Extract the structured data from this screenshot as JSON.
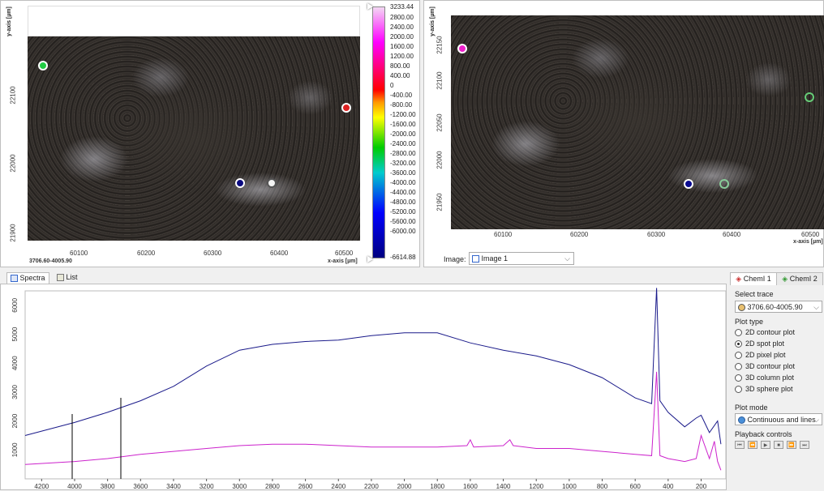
{
  "left_image": {
    "y_axis_label": "y-axis [µm]",
    "x_axis_label": "x-axis [µm]",
    "y_ticks": [
      "22100",
      "22000",
      "21900"
    ],
    "x_ticks": [
      "60100",
      "60200",
      "60300",
      "60400",
      "60500"
    ],
    "corner_label": "3706.60-4005.90",
    "colorbar_labels": [
      "3233.44",
      "2800.00",
      "2400.00",
      "2000.00",
      "1600.00",
      "1200.00",
      "800.00",
      "400.00",
      "0",
      "-400.00",
      "-800.00",
      "-1200.00",
      "-1600.00",
      "-2000.00",
      "-2400.00",
      "-2800.00",
      "-3200.00",
      "-3600.00",
      "-4000.00",
      "-4400.00",
      "-4800.00",
      "-5200.00",
      "-5600.00",
      "-6000.00",
      "-6614.88"
    ]
  },
  "right_image": {
    "y_axis_label": "y-axis [µm]",
    "x_axis_label": "x-axis [µm]",
    "y_ticks": [
      "22150",
      "22100",
      "22050",
      "22000",
      "21950"
    ],
    "x_ticks": [
      "60100",
      "60200",
      "60300",
      "60400",
      "60500"
    ],
    "image_select_label": "Image:",
    "image_select_value": "Image 1"
  },
  "tabs": {
    "spectra": "Spectra",
    "list": "List"
  },
  "spectra": {
    "x_ticks": [
      "4200",
      "4000",
      "3800",
      "3600",
      "3400",
      "3200",
      "3000",
      "2800",
      "2600",
      "2400",
      "2200",
      "2000",
      "1800",
      "1600",
      "1400",
      "1200",
      "1000",
      "800",
      "600",
      "400",
      "200"
    ],
    "y_ticks": [
      "6000",
      "5000",
      "4000",
      "3000",
      "2000",
      "1000"
    ]
  },
  "chemi_tabs": [
    "ChemI 1",
    "ChemI 2"
  ],
  "side": {
    "select_trace_label": "Select trace",
    "select_trace_value": "3706.60-4005.90",
    "plot_type_label": "Plot type",
    "plot_types": [
      "2D contour plot",
      "2D spot plot",
      "2D pixel plot",
      "3D contour plot",
      "3D column plot",
      "3D sphere plot"
    ],
    "plot_type_selected": 1,
    "plot_mode_label": "Plot mode",
    "plot_mode_value": "Continuous and lines",
    "playback_label": "Playback controls"
  },
  "colors": {
    "blue_trace": "#1a1a8a",
    "magenta_trace": "#cc22cc"
  },
  "chart_data": {
    "type": "line",
    "xlim": [
      4300,
      50
    ],
    "ylim": [
      0,
      6500
    ],
    "series": [
      {
        "x": [
          4300,
          4000,
          3800,
          3600,
          3400,
          3200,
          3000,
          2800,
          2600,
          2400,
          2200,
          2000,
          1800,
          1600,
          1400,
          1200,
          1000,
          800,
          600,
          500,
          470,
          450,
          400,
          300,
          230,
          200,
          150,
          100,
          80
        ],
        "y": [
          1500,
          1950,
          2300,
          2700,
          3200,
          3900,
          4450,
          4650,
          4750,
          4800,
          4950,
          5050,
          5050,
          4700,
          4450,
          4250,
          3950,
          3500,
          2800,
          2600,
          6600,
          2700,
          2300,
          1800,
          2100,
          2200,
          1600,
          2000,
          1200
        ]
      },
      {
        "x": [
          4300,
          4000,
          3800,
          3600,
          3400,
          3200,
          3000,
          2800,
          2600,
          2400,
          2200,
          2000,
          1800,
          1620,
          1600,
          1580,
          1400,
          1360,
          1340,
          1200,
          1000,
          800,
          600,
          500,
          470,
          450,
          400,
          300,
          230,
          200,
          150,
          120,
          100,
          80
        ],
        "y": [
          500,
          600,
          700,
          850,
          950,
          1050,
          1150,
          1200,
          1200,
          1150,
          1100,
          1100,
          1100,
          1150,
          1350,
          1100,
          1150,
          1350,
          1150,
          1050,
          1050,
          950,
          850,
          800,
          3700,
          800,
          700,
          600,
          700,
          1500,
          700,
          1300,
          600,
          300
        ]
      }
    ]
  }
}
